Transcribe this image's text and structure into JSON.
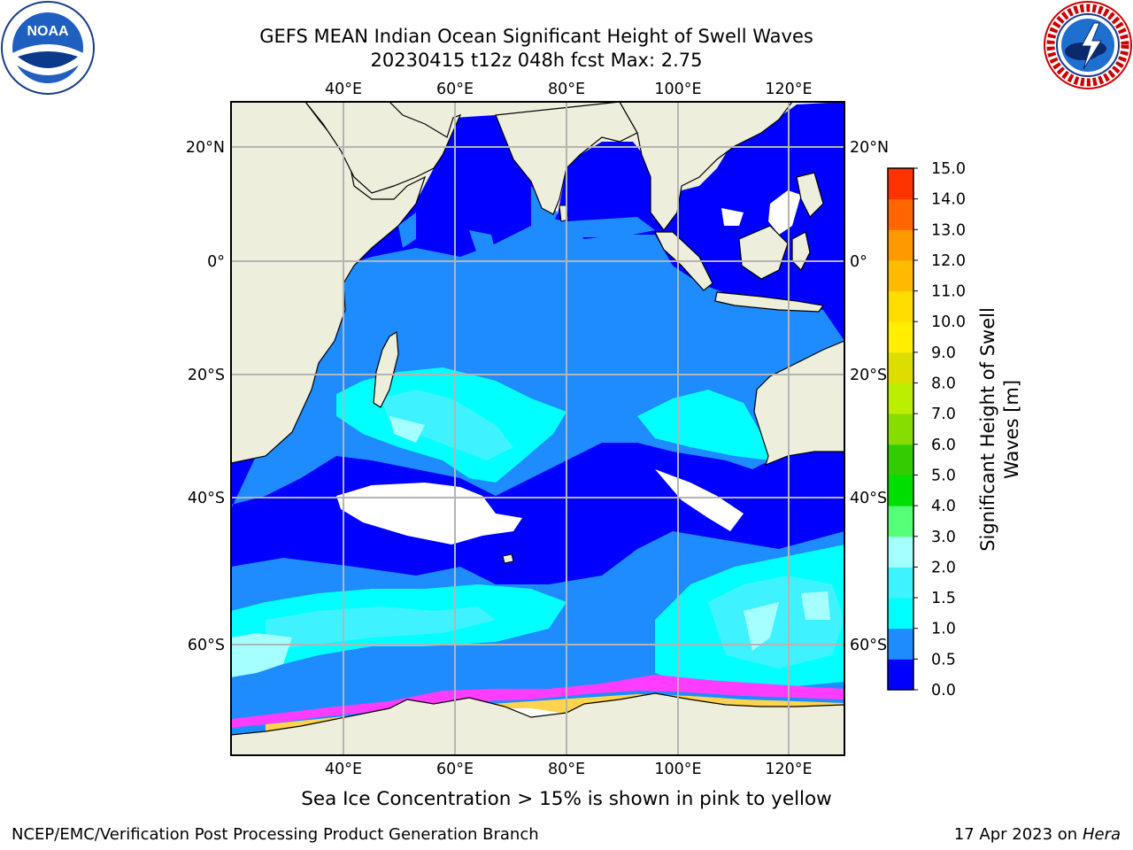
{
  "header": {
    "title_line1": "GEFS MEAN Indian Ocean Significant Height of Swell Waves",
    "title_line2": "20230415 t12z 048h fcst   Max: 2.75"
  },
  "logos": {
    "noaa": {
      "text": "NOAA",
      "ring_text": "NATIONAL OCEANIC AND ATMOSPHERIC ADMINISTRATION · U.S. DEPARTMENT OF COMMERCE"
    },
    "nws": {
      "ring_text": "NATIONAL WEATHER SERVICE"
    }
  },
  "map": {
    "lon_ticks_top": [
      "40°E",
      "60°E",
      "80°E",
      "100°E",
      "120°E"
    ],
    "lon_ticks_bottom": [
      "40°E",
      "60°E",
      "80°E",
      "100°E",
      "120°E"
    ],
    "lat_ticks_left": [
      "20°N",
      "0°",
      "20°S",
      "40°S",
      "60°S"
    ],
    "lat_ticks_right": [
      "20°N",
      "0°",
      "20°S",
      "40°S",
      "60°S"
    ],
    "colors": {
      "land": "#eeeedd",
      "ocean_0_05": "#0000ff",
      "ocean_05_10": "#1e8cff",
      "ocean_10_15": "#00ffff",
      "ocean_15_20": "#3ff2ff",
      "ocean_20_30": "#a6ffff",
      "ice_pink": "#ff3cff",
      "ice_yellow": "#ffd34d"
    }
  },
  "colorbar": {
    "title_line1": "Significant Height of Swell",
    "title_line2": "Waves [m]",
    "levels": [
      "0.0",
      "0.5",
      "1.0",
      "1.5",
      "2.0",
      "3.0",
      "4.0",
      "5.0",
      "6.0",
      "7.0",
      "8.0",
      "9.0",
      "10.0",
      "11.0",
      "12.0",
      "13.0",
      "14.0",
      "15.0"
    ],
    "colors": [
      "#0000ff",
      "#1e8cff",
      "#00ffff",
      "#3ff2ff",
      "#a6ffff",
      "#55ff77",
      "#00dd00",
      "#33cc00",
      "#88dd00",
      "#bbee00",
      "#dddd00",
      "#ffee00",
      "#ffdd00",
      "#ffbb00",
      "#ff9900",
      "#ff6600",
      "#ff3300"
    ]
  },
  "captions": {
    "sea_ice": "Sea Ice Concentration > 15% is shown in pink to yellow"
  },
  "footer": {
    "left": "NCEP/EMC/Verification Post Processing Product Generation Branch",
    "right_prefix": "17 Apr 2023 on ",
    "right_host": "Hera"
  }
}
